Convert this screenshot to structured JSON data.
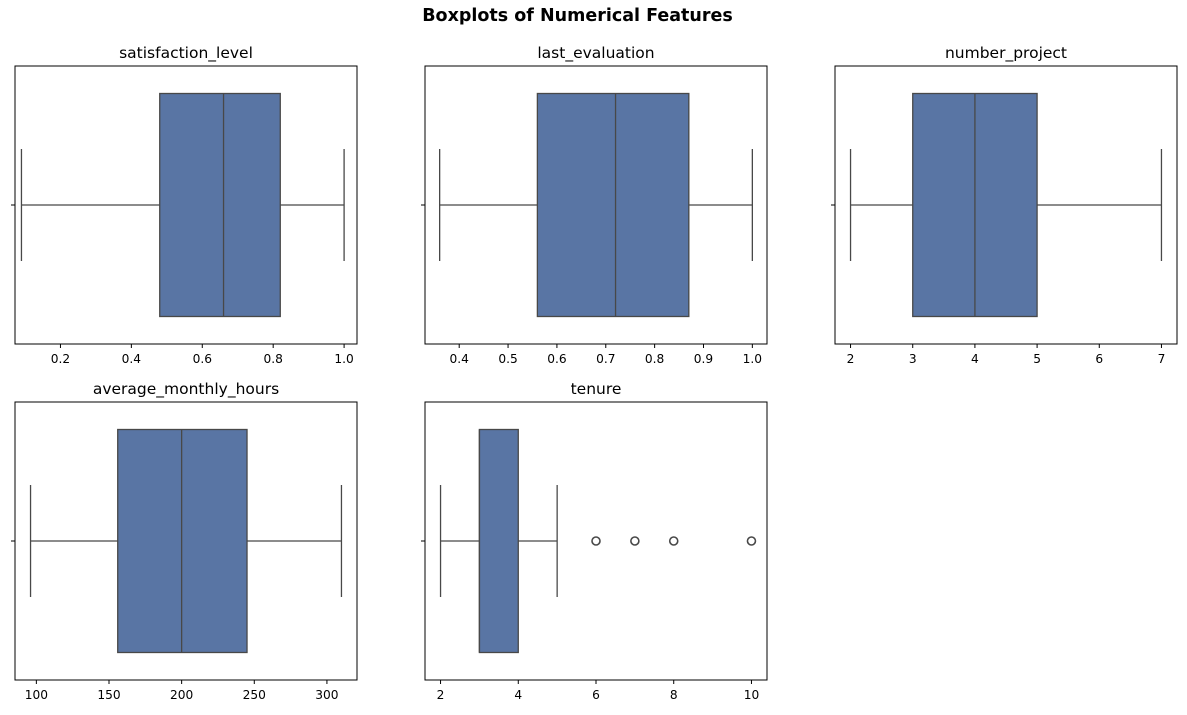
{
  "figure": {
    "title": "Boxplots of Numerical Features"
  },
  "colors": {
    "box_fill": "#5975a4",
    "line": "#484848",
    "frame": "#000000"
  },
  "chart_data": [
    {
      "type": "box",
      "title": "satisfaction_level",
      "xlabel": "",
      "xlim": [
        0.0718,
        1.0364
      ],
      "xticks": [
        0.2,
        0.4,
        0.6,
        0.8,
        1.0
      ],
      "xtick_labels": [
        "0.2",
        "0.4",
        "0.6",
        "0.8",
        "1.0"
      ],
      "whisker_low": 0.09,
      "q1": 0.48,
      "median": 0.66,
      "q3": 0.82,
      "whisker_high": 1.0,
      "outliers": []
    },
    {
      "type": "box",
      "title": "last_evaluation",
      "xlabel": "",
      "xlim": [
        0.33,
        1.03
      ],
      "xticks": [
        0.4,
        0.5,
        0.6,
        0.7,
        0.8,
        0.9,
        1.0
      ],
      "xtick_labels": [
        "0.4",
        "0.5",
        "0.6",
        "0.7",
        "0.8",
        "0.9",
        "1.0"
      ],
      "whisker_low": 0.36,
      "q1": 0.56,
      "median": 0.72,
      "q3": 0.87,
      "whisker_high": 1.0,
      "outliers": []
    },
    {
      "type": "box",
      "title": "number_project",
      "xlabel": "",
      "xlim": [
        1.75,
        7.25
      ],
      "xticks": [
        2,
        3,
        4,
        5,
        6,
        7
      ],
      "xtick_labels": [
        "2",
        "3",
        "4",
        "5",
        "6",
        "7"
      ],
      "whisker_low": 2,
      "q1": 3,
      "median": 4,
      "q3": 5,
      "whisker_high": 7,
      "outliers": []
    },
    {
      "type": "box",
      "title": "average_monthly_hours",
      "xlabel": "",
      "xlim": [
        85.3,
        320.7
      ],
      "xticks": [
        100,
        150,
        200,
        250,
        300
      ],
      "xtick_labels": [
        "100",
        "150",
        "200",
        "250",
        "300"
      ],
      "whisker_low": 96,
      "q1": 156,
      "median": 200,
      "q3": 245,
      "whisker_high": 310,
      "outliers": []
    },
    {
      "type": "box",
      "title": "tenure",
      "xlabel": "",
      "xlim": [
        1.6,
        10.4
      ],
      "xticks": [
        2,
        4,
        6,
        8,
        10
      ],
      "xtick_labels": [
        "2",
        "4",
        "6",
        "8",
        "10"
      ],
      "whisker_low": 2,
      "q1": 3,
      "median": 3,
      "q3": 4,
      "whisker_high": 5,
      "outliers": [
        6,
        7,
        8,
        10
      ]
    }
  ]
}
